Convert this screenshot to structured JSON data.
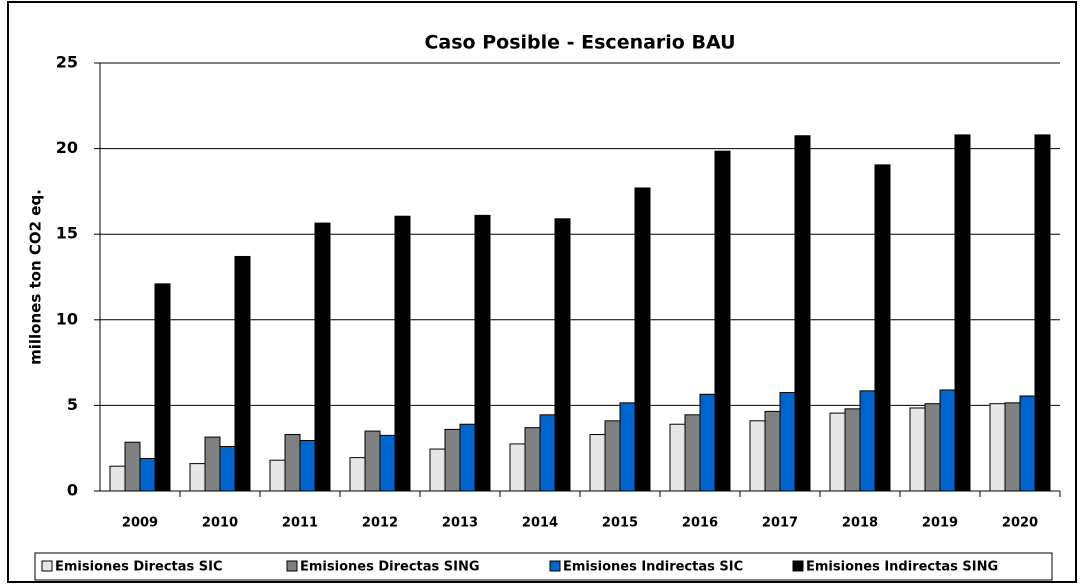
{
  "chart_data": {
    "type": "bar",
    "title": "Caso Posible - Escenario BAU",
    "y_label": "millones ton CO2 eq.",
    "categories": [
      "2009",
      "2010",
      "2011",
      "2012",
      "2013",
      "2014",
      "2015",
      "2016",
      "2017",
      "2018",
      "2019",
      "2020"
    ],
    "series": [
      {
        "name": "Emisiones Directas SIC",
        "color": "#e6e6e6",
        "values": [
          1.45,
          1.6,
          1.8,
          1.95,
          2.45,
          2.75,
          3.3,
          3.9,
          4.1,
          4.55,
          4.85,
          5.1
        ]
      },
      {
        "name": "Emisiones Directas SING",
        "color": "#808080",
        "values": [
          2.85,
          3.15,
          3.3,
          3.5,
          3.6,
          3.7,
          4.1,
          4.45,
          4.65,
          4.8,
          5.1,
          5.15
        ]
      },
      {
        "name": "Emisiones Indirectas SIC",
        "color": "#0066cc",
        "values": [
          1.9,
          2.6,
          2.95,
          3.25,
          3.9,
          4.45,
          5.15,
          5.65,
          5.75,
          5.85,
          5.9,
          5.55
        ]
      },
      {
        "name": "Emisiones Indirectas SING",
        "color": "#000000",
        "values": [
          12.1,
          13.7,
          15.65,
          16.05,
          16.1,
          15.9,
          17.7,
          19.85,
          20.75,
          19.05,
          20.8,
          20.8
        ]
      }
    ],
    "ylim": [
      0,
      25
    ],
    "yticks": [
      0,
      5,
      10,
      15,
      20,
      25
    ],
    "grid": true,
    "legend": "bottom"
  }
}
